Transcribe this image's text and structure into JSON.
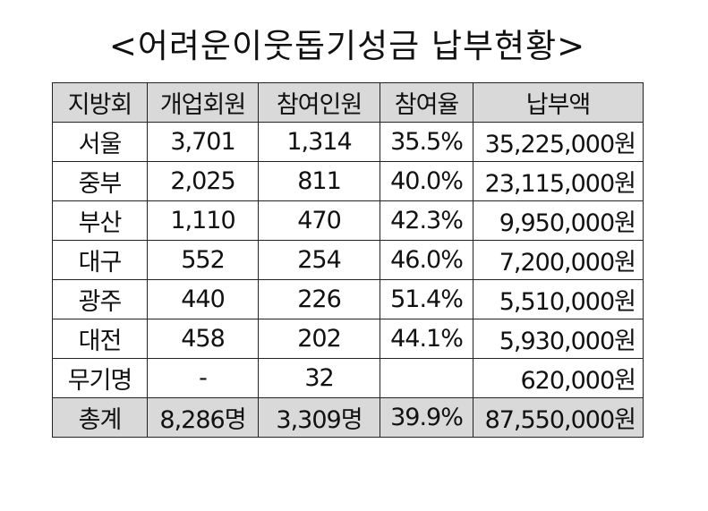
{
  "title": "<어려운이웃돕기성금  납부현황>",
  "columns": [
    "지방회",
    "개업회원",
    "참여인원",
    "참여율",
    "납부액"
  ],
  "rows": [
    {
      "region": "서울",
      "members": "3,701",
      "participants": "1,314",
      "rate": "35.5%",
      "amount": "35,225,000원"
    },
    {
      "region": "중부",
      "members": "2,025",
      "participants": "811",
      "rate": "40.0%",
      "amount": "23,115,000원"
    },
    {
      "region": "부산",
      "members": "1,110",
      "participants": "470",
      "rate": "42.3%",
      "amount": "9,950,000원"
    },
    {
      "region": "대구",
      "members": "552",
      "participants": "254",
      "rate": "46.0%",
      "amount": "7,200,000원"
    },
    {
      "region": "광주",
      "members": "440",
      "participants": "226",
      "rate": "51.4%",
      "amount": "5,510,000원"
    },
    {
      "region": "대전",
      "members": "458",
      "participants": "202",
      "rate": "44.1%",
      "amount": "5,930,000원"
    },
    {
      "region": "무기명",
      "members": "-",
      "participants": "32",
      "rate": "",
      "amount": "620,000원"
    }
  ],
  "total": {
    "region": "총계",
    "members": "8,286명",
    "participants": "3,309명",
    "rate": "39.9%",
    "amount": "87,550,000원"
  },
  "colors": {
    "header_bg": "#d9d9d9",
    "total_bg": "#d9d9d9",
    "border": "#222222"
  }
}
